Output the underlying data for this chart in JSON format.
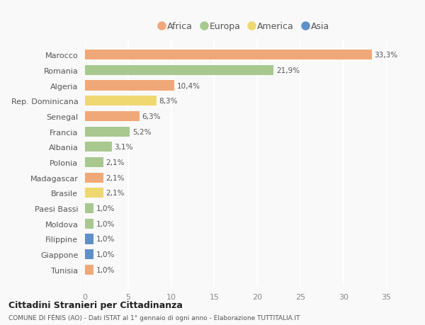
{
  "countries": [
    "Marocco",
    "Romania",
    "Algeria",
    "Rep. Dominicana",
    "Senegal",
    "Francia",
    "Albania",
    "Polonia",
    "Madagascar",
    "Brasile",
    "Paesi Bassi",
    "Moldova",
    "Filippine",
    "Giappone",
    "Tunisia"
  ],
  "values": [
    33.3,
    21.9,
    10.4,
    8.3,
    6.3,
    5.2,
    3.1,
    2.1,
    2.1,
    2.1,
    1.0,
    1.0,
    1.0,
    1.0,
    1.0
  ],
  "labels": [
    "33,3%",
    "21,9%",
    "10,4%",
    "8,3%",
    "6,3%",
    "5,2%",
    "3,1%",
    "2,1%",
    "2,1%",
    "2,1%",
    "1,0%",
    "1,0%",
    "1,0%",
    "1,0%",
    "1,0%"
  ],
  "continents": [
    "Africa",
    "Europa",
    "Africa",
    "America",
    "Africa",
    "Europa",
    "Europa",
    "Europa",
    "Africa",
    "America",
    "Europa",
    "Europa",
    "Asia",
    "Asia",
    "Africa"
  ],
  "colors": {
    "Africa": "#F0A878",
    "Europa": "#A8C890",
    "America": "#F0D870",
    "Asia": "#6090C8"
  },
  "xlim": [
    0,
    37
  ],
  "xticks": [
    0,
    5,
    10,
    15,
    20,
    25,
    30,
    35
  ],
  "title1": "Cittadini Stranieri per Cittadinanza",
  "title2": "COMUNE DI FÉNIS (AO) - Dati ISTAT al 1° gennaio di ogni anno - Elaborazione TUTTITALIA.IT",
  "background_color": "#f9f9f9",
  "bar_height": 0.65,
  "label_fontsize": 7.5,
  "ytick_fontsize": 8,
  "xtick_fontsize": 8,
  "legend_order": [
    "Africa",
    "Europa",
    "America",
    "Asia"
  ]
}
